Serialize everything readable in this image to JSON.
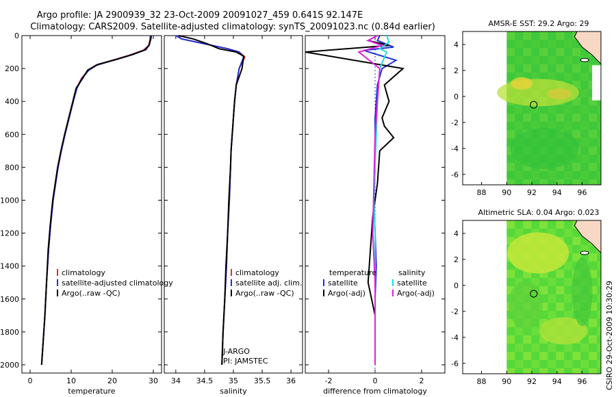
{
  "title_line1": "Argo profile: JA 2900939_32 23-Oct-2009 20091027_459 0.641S 92.147E",
  "title_line2": "Climatology: CARS2009. Satellite-adjusted climatology: synTS_20091023.nc (0.84d earlier)",
  "credit": "CSIRO 29-Oct-2009 10:30:29",
  "colors": {
    "climatology": "#e0301e",
    "satellite": "#1f2fd6",
    "argo": "#000000",
    "cyan": "#22d8e8",
    "magenta": "#e020e0"
  },
  "chart_data": [
    {
      "type": "line",
      "xlabel": "temperature",
      "xlim": [
        -2,
        32
      ],
      "ylim": [
        2050,
        0
      ],
      "xticks": [
        0,
        10,
        20,
        30
      ],
      "xtick_labels": [
        "0",
        "10",
        "20",
        "30"
      ],
      "yticks": [
        0,
        200,
        400,
        600,
        800,
        1000,
        1200,
        1400,
        1600,
        1800,
        2000
      ],
      "legend": [
        "climatology",
        "satellite-adjusted climatology",
        "Argo(..raw -QC)"
      ],
      "series": [
        {
          "name": "climatology",
          "color": "#e0301e",
          "x": [
            29.3,
            29.2,
            28.9,
            27.5,
            24,
            20,
            16,
            14.2,
            12.5,
            11.3,
            10.5,
            9.5,
            8.5,
            7.6,
            6.8,
            6.2,
            5.6,
            5,
            4.5,
            4,
            3.6,
            3.2,
            2.8
          ],
          "y": [
            0,
            20,
            60,
            90,
            120,
            150,
            180,
            210,
            260,
            320,
            400,
            500,
            600,
            700,
            800,
            900,
            1000,
            1150,
            1300,
            1500,
            1700,
            1850,
            2000
          ]
        },
        {
          "name": "satellite-adjusted climatology",
          "color": "#1f2fd6",
          "x": [
            29.4,
            29.3,
            29.0,
            27.7,
            24.2,
            20.2,
            16.2,
            14.3,
            12.6,
            11.4,
            10.5,
            9.5,
            8.5,
            7.6,
            6.8,
            6.2,
            5.6,
            5,
            4.5,
            4,
            3.6,
            3.2,
            2.8
          ],
          "y": [
            0,
            20,
            60,
            90,
            120,
            150,
            180,
            210,
            260,
            320,
            400,
            500,
            600,
            700,
            800,
            900,
            1000,
            1150,
            1300,
            1500,
            1700,
            1850,
            2000
          ]
        },
        {
          "name": "Argo(..raw -QC)",
          "color": "#000000",
          "x": [
            29.5,
            29.4,
            29.0,
            28.2,
            25,
            21,
            16.5,
            14,
            12.8,
            11.2,
            10.4,
            9.4,
            8.4,
            7.5,
            6.7,
            6.1,
            5.5,
            4.9,
            4.4,
            4,
            3.6,
            3.2,
            2.8
          ],
          "y": [
            0,
            20,
            55,
            85,
            115,
            145,
            175,
            210,
            260,
            320,
            400,
            500,
            600,
            700,
            800,
            900,
            1000,
            1150,
            1300,
            1500,
            1700,
            1850,
            2000
          ]
        }
      ]
    },
    {
      "type": "line",
      "xlabel": "salinity",
      "xlim": [
        33.8,
        36.2
      ],
      "ylim": [
        2050,
        0
      ],
      "xticks": [
        34,
        34.5,
        35,
        35.5,
        36
      ],
      "xtick_labels": [
        "34",
        "34.5",
        "35",
        "35.5",
        "36"
      ],
      "legend": [
        "climatology",
        "satellite adj. clim.",
        "Argo(..raw -QC)"
      ],
      "annotation": [
        "J-ARGO",
        "PI: JAMSTEC"
      ],
      "series": [
        {
          "name": "climatology",
          "color": "#e0301e",
          "x": [
            34.02,
            34.1,
            34.5,
            34.9,
            35.1,
            35.2,
            35.1,
            35.05,
            35.02,
            35.0,
            34.98,
            34.96,
            34.95,
            34.93,
            34.9,
            34.88,
            34.85,
            34.82,
            34.8
          ],
          "y": [
            0,
            20,
            50,
            80,
            100,
            130,
            200,
            300,
            400,
            500,
            600,
            700,
            800,
            1000,
            1200,
            1400,
            1600,
            1800,
            2000
          ]
        },
        {
          "name": "satellite adj. clim.",
          "color": "#1f2fd6",
          "x": [
            34.0,
            34.1,
            34.5,
            34.9,
            35.1,
            35.18,
            35.1,
            35.05,
            35.02,
            35.0,
            34.98,
            34.96,
            34.95,
            34.93,
            34.9,
            34.88,
            34.85,
            34.82,
            34.8
          ],
          "y": [
            0,
            20,
            50,
            80,
            100,
            130,
            200,
            300,
            400,
            500,
            600,
            700,
            800,
            1000,
            1200,
            1400,
            1600,
            1800,
            2000
          ]
        },
        {
          "name": "Argo(..raw -QC)",
          "color": "#000000",
          "x": [
            34.05,
            34.3,
            34.55,
            34.75,
            35.05,
            35.18,
            35.15,
            35.05,
            35.02,
            35.0,
            34.98,
            34.96,
            34.95,
            34.92,
            34.9,
            34.87,
            34.85,
            34.82,
            34.8
          ],
          "y": [
            0,
            20,
            50,
            80,
            100,
            125,
            200,
            300,
            400,
            500,
            600,
            700,
            800,
            1000,
            1200,
            1400,
            1600,
            1800,
            2000
          ]
        }
      ]
    },
    {
      "type": "line",
      "xlabel": "difference from climatology",
      "xlim": [
        -3,
        3
      ],
      "ylim": [
        2050,
        0
      ],
      "xticks": [
        -2,
        0,
        2
      ],
      "xtick_labels": [
        "-2",
        "0",
        "2"
      ],
      "legend_left": [
        "temperature",
        "satellite",
        "Argo(-adj)"
      ],
      "legend_right": [
        "salinity",
        "satellite",
        "Argo(-adj)"
      ],
      "series": [
        {
          "name": "temperature satellite",
          "color": "#1f2fd6",
          "x": [
            0.2,
            0.1,
            0.8,
            -0.5,
            0.9,
            0.3,
            0.1,
            0,
            0,
            -0.05,
            0,
            0.05,
            0,
            0,
            0
          ],
          "y": [
            0,
            30,
            70,
            90,
            150,
            200,
            300,
            500,
            800,
            1000,
            1200,
            1400,
            1600,
            1800,
            2000
          ]
        },
        {
          "name": "temperature Argo(-adj)",
          "color": "#000000",
          "x": [
            0.1,
            -0.3,
            0.6,
            -3.0,
            1.2,
            0.4,
            0.6,
            0.3,
            0.4,
            0.8,
            0.2,
            0.1,
            -0.1,
            -0.15,
            -0.2,
            -0.3,
            0,
            0
          ],
          "y": [
            0,
            30,
            60,
            100,
            200,
            300,
            400,
            500,
            550,
            620,
            700,
            900,
            1100,
            1200,
            1300,
            1500,
            1700,
            2000
          ]
        },
        {
          "name": "salinity satellite",
          "color": "#22d8e8",
          "x": [
            0.5,
            0.6,
            0.2,
            0.5,
            0.2,
            0.1,
            0.05,
            0,
            -0.05,
            0,
            0,
            0,
            0
          ],
          "y": [
            0,
            40,
            80,
            100,
            200,
            400,
            600,
            800,
            1000,
            1200,
            1400,
            1700,
            2000
          ]
        },
        {
          "name": "salinity Argo(-adj)",
          "color": "#e020e0",
          "x": [
            0.1,
            -0.3,
            0.3,
            -0.7,
            0.2,
            0.1,
            0,
            -0.05,
            -0.1,
            0,
            0,
            0
          ],
          "y": [
            0,
            30,
            60,
            100,
            200,
            400,
            600,
            900,
            1200,
            1500,
            1800,
            2000
          ]
        }
      ]
    },
    {
      "type": "heatmap",
      "title": "AMSR-E SST: 29.2  Argo: 29",
      "xlim": [
        86.5,
        97.5
      ],
      "ylim": [
        -6.8,
        5
      ],
      "xticks": [
        88,
        90,
        92,
        94,
        96
      ],
      "yticks": [
        -6,
        -4,
        -2,
        0,
        2,
        4
      ],
      "marker": {
        "x": 92.15,
        "y": -0.64
      }
    },
    {
      "type": "heatmap",
      "title": "Altimetric SLA: 0.04  Argo: 0.023",
      "xlim": [
        86.5,
        97.5
      ],
      "ylim": [
        -6.8,
        5
      ],
      "xticks": [
        88,
        90,
        92,
        94,
        96
      ],
      "yticks": [
        -6,
        -4,
        -2,
        0,
        2,
        4
      ],
      "marker": {
        "x": 92.15,
        "y": -0.64
      }
    }
  ]
}
